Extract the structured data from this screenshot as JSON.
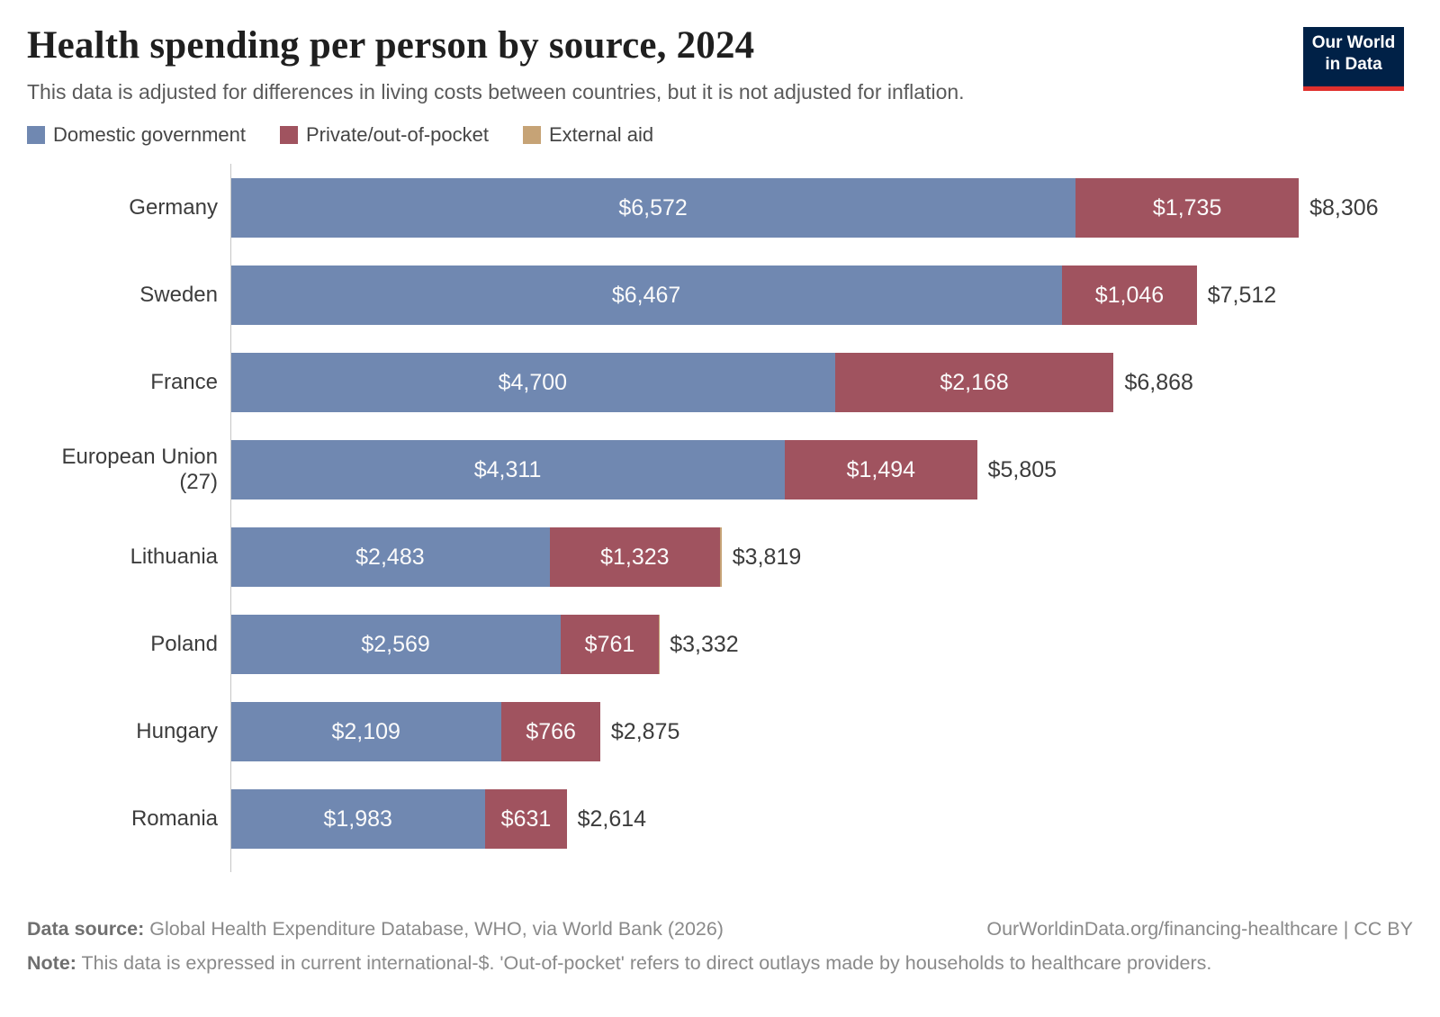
{
  "header": {
    "title": "Health spending per person by source, 2024",
    "subtitle": "This data is adjusted for differences in living costs between countries, but it is not adjusted for inflation.",
    "logo": {
      "line1": "Our World",
      "line2": "in Data",
      "bg_color": "#002147",
      "stripe_color": "#e0302d"
    }
  },
  "legend": [
    {
      "label": "Domestic government",
      "color": "#7088b1"
    },
    {
      "label": "Private/out-of-pocket",
      "color": "#a0535f"
    },
    {
      "label": "External aid",
      "color": "#c6a376"
    }
  ],
  "chart_data": {
    "type": "bar",
    "stacked": true,
    "orientation": "horizontal",
    "title": "Health spending per person by source, 2024",
    "xlabel": "",
    "ylabel": "",
    "xmax": 8306,
    "grid": false,
    "categories": [
      "Germany",
      "Sweden",
      "France",
      "European Union (27)",
      "Lithuania",
      "Poland",
      "Hungary",
      "Romania"
    ],
    "series": [
      {
        "name": "Domestic government",
        "color": "#7088b1",
        "values": [
          6572,
          6467,
          4700,
          4311,
          2483,
          2569,
          2109,
          1983
        ],
        "labels": [
          "$6,572",
          "$6,467",
          "$4,700",
          "$4,311",
          "$2,483",
          "$2,569",
          "$2,109",
          "$1,983"
        ]
      },
      {
        "name": "Private/out-of-pocket",
        "color": "#a0535f",
        "values": [
          1735,
          1046,
          2168,
          1494,
          1323,
          761,
          766,
          631
        ],
        "labels": [
          "$1,735",
          "$1,046",
          "$2,168",
          "$1,494",
          "$1,323",
          "$761",
          "$766",
          "$631"
        ]
      },
      {
        "name": "External aid",
        "color": "#c6a376",
        "values": [
          0,
          0,
          0,
          0,
          13,
          2,
          0,
          0
        ],
        "labels": [
          "",
          "",
          "",
          "",
          "",
          "",
          "",
          ""
        ]
      }
    ],
    "totals": [
      8306,
      7512,
      6868,
      5805,
      3819,
      3332,
      2875,
      2614
    ],
    "total_labels": [
      "$8,306",
      "$7,512",
      "$6,868",
      "$5,805",
      "$3,819",
      "$3,332",
      "$2,875",
      "$2,614"
    ]
  },
  "footer": {
    "source_label": "Data source:",
    "source_text": " Global Health Expenditure Database, WHO, via World Bank (2026)",
    "link_text": "OurWorldinData.org/financing-healthcare | CC BY",
    "note_label": "Note:",
    "note_text": " This data is expressed in current international-$. 'Out-of-pocket' refers to direct outlays made by households to healthcare providers."
  }
}
